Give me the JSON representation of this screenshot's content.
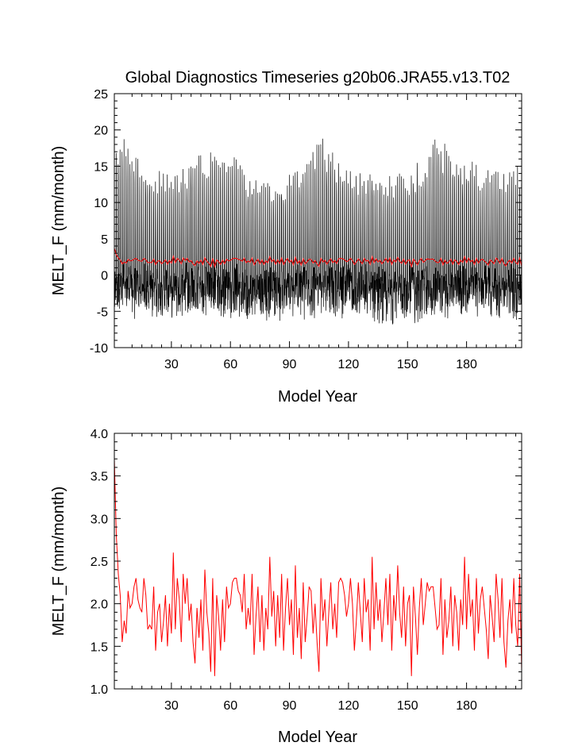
{
  "chart_data": [
    {
      "type": "line",
      "title": "Global Diagnostics Timeseries g20b06.JRA55.v13.T02",
      "xlabel": "Model Year",
      "ylabel": "MELT_F (mm/month)",
      "xlim": [
        1,
        208
      ],
      "ylim": [
        -10,
        25
      ],
      "x_ticks": [
        30,
        60,
        90,
        120,
        150,
        180
      ],
      "y_ticks": [
        -10,
        -5,
        0,
        5,
        10,
        15,
        20,
        25
      ],
      "grid": false,
      "series": [
        {
          "color": "#000000",
          "resolution": "monthly",
          "approx_range": [
            -8,
            19.5
          ],
          "seasonal_peak_envelope": [
            [
              1,
              19.5
            ],
            [
              5,
              20
            ],
            [
              10,
              17
            ],
            [
              20,
              15
            ],
            [
              30,
              14
            ],
            [
              40,
              16
            ],
            [
              50,
              18
            ],
            [
              55,
              19
            ],
            [
              60,
              18
            ],
            [
              70,
              14
            ],
            [
              80,
              13
            ],
            [
              90,
              14
            ],
            [
              100,
              17
            ],
            [
              105,
              19.5
            ],
            [
              110,
              18
            ],
            [
              120,
              15
            ],
            [
              130,
              14
            ],
            [
              140,
              14
            ],
            [
              150,
              14
            ],
            [
              160,
              17
            ],
            [
              165,
              19.5
            ],
            [
              170,
              18
            ],
            [
              180,
              16
            ],
            [
              190,
              15
            ],
            [
              200,
              15
            ],
            [
              208,
              15
            ]
          ],
          "seasonal_trough_envelope": [
            [
              1,
              -6
            ],
            [
              20,
              -6.5
            ],
            [
              40,
              -6
            ],
            [
              60,
              -6.5
            ],
            [
              80,
              -7
            ],
            [
              100,
              -6.5
            ],
            [
              120,
              -6
            ],
            [
              140,
              -7
            ],
            [
              160,
              -7.5
            ],
            [
              180,
              -6
            ],
            [
              200,
              -6.5
            ],
            [
              208,
              -7
            ]
          ]
        },
        {
          "color": "#ff0000",
          "resolution": "annual",
          "values_ref": "annual_mean"
        }
      ]
    },
    {
      "type": "line",
      "title": "",
      "xlabel": "Model Year",
      "ylabel": "MELT_F (mm/month)",
      "xlim": [
        1,
        208
      ],
      "ylim": [
        1.0,
        4.0
      ],
      "x_ticks": [
        30,
        60,
        90,
        120,
        150,
        180
      ],
      "y_ticks": [
        "1.0",
        "1.5",
        "2.0",
        "2.5",
        "3.0",
        "3.5",
        "4.0"
      ],
      "grid": false,
      "series": [
        {
          "color": "#ff0000",
          "resolution": "annual",
          "values_ref": "annual_mean"
        }
      ]
    }
  ],
  "annual_mean": {
    "x_start": 1,
    "values": [
      3.7,
      2.8,
      2.35,
      2.1,
      1.55,
      1.8,
      1.65,
      2.15,
      1.95,
      2.0,
      2.2,
      2.3,
      2.05,
      1.95,
      1.9,
      2.3,
      2.1,
      1.7,
      1.75,
      1.7,
      2.2,
      1.45,
      1.9,
      2.0,
      1.55,
      1.8,
      2.1,
      1.5,
      2.0,
      1.65,
      2.6,
      1.7,
      2.3,
      2.05,
      1.55,
      2.35,
      2.0,
      2.3,
      1.8,
      2.0,
      1.55,
      1.3,
      1.95,
      1.6,
      2.05,
      1.45,
      2.4,
      1.9,
      1.65,
      1.2,
      2.3,
      1.15,
      2.1,
      1.85,
      1.45,
      2.05,
      1.55,
      2.2,
      1.95,
      2.0,
      2.25,
      2.3,
      2.3,
      2.15,
      2.1,
      1.9,
      2.35,
      1.7,
      1.95,
      1.75,
      2.35,
      1.4,
      1.85,
      2.2,
      1.55,
      2.1,
      1.45,
      1.95,
      1.7,
      2.55,
      1.85,
      2.15,
      1.5,
      2.1,
      1.6,
      2.35,
      1.45,
      1.95,
      2.3,
      1.75,
      2.05,
      1.4,
      2.45,
      1.6,
      1.95,
      1.35,
      2.25,
      1.55,
      1.85,
      2.2,
      2.15,
      1.65,
      2.0,
      1.55,
      1.2,
      2.3,
      1.8,
      2.05,
      1.5,
      1.9,
      2.25,
      1.7,
      2.0,
      1.6,
      2.25,
      2.3,
      2.25,
      2.1,
      1.85,
      2.0,
      2.3,
      2.0,
      1.45,
      1.8,
      2.25,
      1.9,
      1.55,
      2.3,
      1.9,
      2.05,
      1.45,
      2.55,
      1.7,
      2.25,
      1.8,
      2.05,
      1.55,
      1.9,
      2.3,
      1.75,
      2.35,
      1.45,
      2.1,
      1.8,
      2.45,
      1.9,
      1.6,
      2.2,
      1.5,
      2.0,
      2.1,
      1.15,
      2.2,
      1.85,
      1.4,
      1.95,
      2.3,
      1.75,
      2.0,
      2.25,
      2.15,
      2.2,
      2.2,
      1.95,
      1.7,
      1.75,
      2.3,
      1.4,
      2.05,
      1.6,
      1.8,
      2.2,
      1.5,
      2.1,
      1.9,
      1.45,
      2.05,
      1.75,
      2.55,
      1.7,
      2.35,
      1.85,
      2.05,
      1.45,
      2.3,
      1.65,
      2.05,
      2.2,
      1.95,
      1.7,
      1.35,
      2.1,
      1.85,
      1.55,
      2.35,
      2.05,
      1.6,
      2.3,
      1.55,
      1.25,
      1.8,
      2.05,
      1.65,
      2.3,
      1.75,
      1.5,
      2.35,
      1.22
    ]
  }
}
